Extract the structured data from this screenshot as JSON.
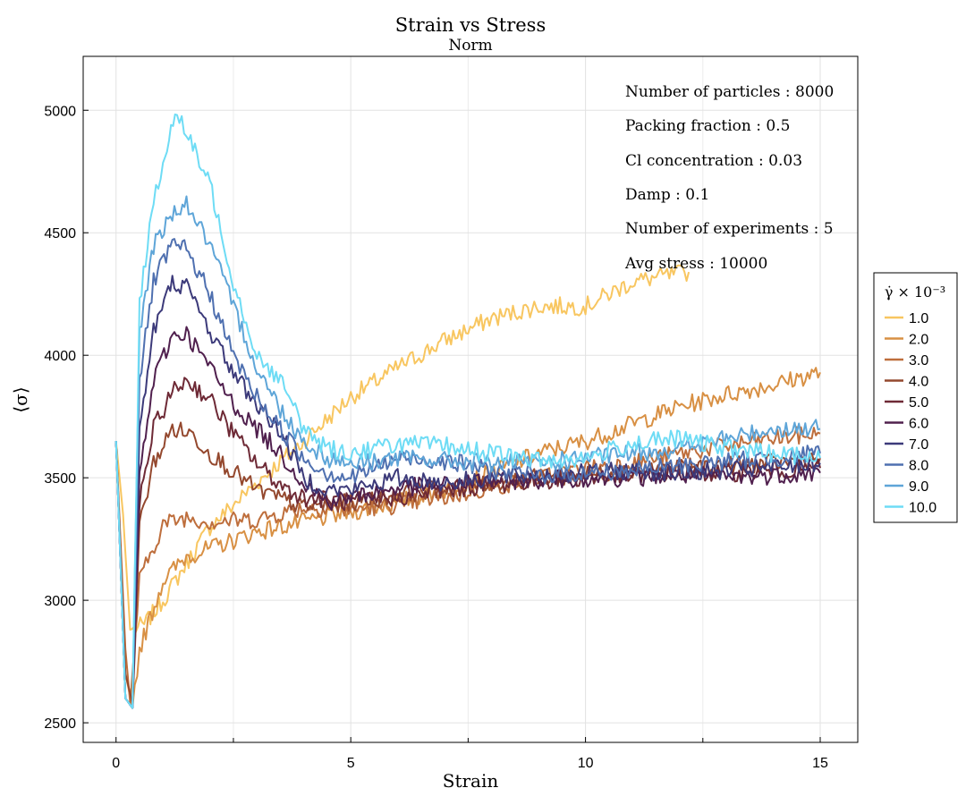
{
  "chart_data": {
    "type": "line",
    "title": "Strain vs Stress",
    "subtitle": "Norm",
    "xlabel": "Strain",
    "ylabel": "⟨σ⟩",
    "xlim": [
      -0.7,
      15.8
    ],
    "ylim": [
      2420,
      5220
    ],
    "xticks": [
      0,
      5,
      10,
      15
    ],
    "yticks": [
      2500,
      3000,
      3500,
      4000,
      4500,
      5000
    ],
    "grid": true,
    "legend": {
      "title": "γ̇ × 10⁻³",
      "position": "right"
    },
    "annotations": [
      "Number of particles : 8000",
      "Packing fraction : 0.5",
      "Cl concentration : 0.03",
      "Damp : 0.1",
      "Number of experiments : 5",
      "Avg stress : 10000"
    ],
    "series": [
      {
        "name": "1.0",
        "color": "#F8C660",
        "x": [
          0,
          0.15,
          0.3,
          0.6,
          1.0,
          1.5,
          2.0,
          3.0,
          4.0,
          5.0,
          6.0,
          7.0,
          8.0,
          9.0,
          10.0,
          11.0,
          12.2
        ],
        "values": [
          3650,
          3350,
          2880,
          2900,
          3000,
          3150,
          3300,
          3480,
          3650,
          3830,
          3950,
          4060,
          4150,
          4200,
          4200,
          4300,
          4340
        ]
      },
      {
        "name": "2.0",
        "color": "#D89044",
        "x": [
          0,
          0.2,
          0.35,
          0.5,
          1.0,
          1.5,
          2.0,
          3.0,
          4.0,
          5.0,
          6.0,
          7.0,
          8.0,
          9.0,
          10.0,
          11.0,
          12.0,
          13.0,
          14.0,
          15.0
        ],
        "values": [
          3650,
          2700,
          2560,
          2800,
          3080,
          3180,
          3210,
          3280,
          3320,
          3360,
          3400,
          3450,
          3520,
          3600,
          3650,
          3720,
          3790,
          3840,
          3880,
          3930
        ]
      },
      {
        "name": "3.0",
        "color": "#BE6E3C",
        "x": [
          0,
          0.2,
          0.3,
          0.5,
          1.0,
          1.5,
          2.0,
          3.0,
          4.0,
          5.0,
          6.0,
          7.0,
          8.0,
          9.0,
          10.0,
          11.0,
          12.0,
          13.0,
          14.0,
          15.0
        ],
        "values": [
          3650,
          2800,
          2580,
          3080,
          3310,
          3340,
          3320,
          3330,
          3380,
          3370,
          3390,
          3420,
          3460,
          3500,
          3540,
          3560,
          3600,
          3630,
          3660,
          3680
        ]
      },
      {
        "name": "4.0",
        "color": "#94482E",
        "x": [
          0,
          0.2,
          0.35,
          0.5,
          0.8,
          1.2,
          1.6,
          2.0,
          3.0,
          4.0,
          5.0,
          6.0,
          7.0,
          8.0,
          9.0,
          10.0,
          11.0,
          12.0,
          13.0,
          14.0,
          15.0
        ],
        "values": [
          3650,
          2700,
          2580,
          3300,
          3560,
          3700,
          3680,
          3600,
          3450,
          3380,
          3400,
          3430,
          3460,
          3480,
          3500,
          3510,
          3530,
          3540,
          3550,
          3560,
          3580
        ]
      },
      {
        "name": "5.0",
        "color": "#6E2A36",
        "x": [
          0,
          0.2,
          0.35,
          0.5,
          0.8,
          1.2,
          1.5,
          2.0,
          2.5,
          3.0,
          3.5,
          4.0,
          5.0,
          6.0,
          7.0,
          8.0,
          9.0,
          10.0,
          11.0,
          12.0,
          13.0,
          14.0,
          15.0
        ],
        "values": [
          3650,
          2600,
          2560,
          3400,
          3700,
          3850,
          3900,
          3820,
          3680,
          3560,
          3470,
          3420,
          3400,
          3420,
          3450,
          3470,
          3490,
          3500,
          3510,
          3520,
          3520,
          3530,
          3540
        ]
      },
      {
        "name": "6.0",
        "color": "#50204E",
        "x": [
          0,
          0.2,
          0.35,
          0.5,
          0.8,
          1.2,
          1.5,
          2.0,
          2.5,
          3.0,
          3.5,
          4.0,
          4.5,
          5.0,
          6.0,
          7.0,
          8.0,
          9.0,
          10.0,
          11.0,
          12.0,
          13.0,
          14.0,
          15.0
        ],
        "values": [
          3650,
          2600,
          2560,
          3500,
          3900,
          4080,
          4090,
          3950,
          3800,
          3700,
          3600,
          3480,
          3400,
          3420,
          3460,
          3470,
          3490,
          3490,
          3500,
          3500,
          3510,
          3500,
          3510,
          3520
        ]
      },
      {
        "name": "7.0",
        "color": "#3C3A7A",
        "x": [
          0,
          0.2,
          0.35,
          0.5,
          0.8,
          1.2,
          1.5,
          2.0,
          2.5,
          3.0,
          3.5,
          4.0,
          4.5,
          5.0,
          6.0,
          7.0,
          8.0,
          9.0,
          10.0,
          11.0,
          12.0,
          13.0,
          14.0,
          15.0
        ],
        "values": [
          3650,
          2600,
          2560,
          3700,
          4100,
          4300,
          4280,
          4100,
          3930,
          3800,
          3690,
          3500,
          3450,
          3450,
          3500,
          3480,
          3500,
          3510,
          3520,
          3530,
          3520,
          3530,
          3540,
          3560
        ]
      },
      {
        "name": "8.0",
        "color": "#4F70B0",
        "x": [
          0,
          0.2,
          0.35,
          0.5,
          0.8,
          1.2,
          1.5,
          2.0,
          2.5,
          3.0,
          3.5,
          4.0,
          4.5,
          5.0,
          6.0,
          7.0,
          8.0,
          9.0,
          10.0,
          11.0,
          12.0,
          13.0,
          14.0,
          15.0
        ],
        "values": [
          3650,
          2600,
          2560,
          3900,
          4300,
          4450,
          4430,
          4250,
          4000,
          3830,
          3700,
          3580,
          3520,
          3500,
          3580,
          3570,
          3530,
          3510,
          3520,
          3530,
          3550,
          3570,
          3580,
          3600
        ]
      },
      {
        "name": "9.0",
        "color": "#5EA5D8",
        "x": [
          0,
          0.2,
          0.35,
          0.5,
          0.8,
          1.2,
          1.5,
          2.0,
          2.5,
          3.0,
          3.5,
          4.0,
          4.5,
          5.0,
          6.0,
          7.0,
          8.0,
          9.0,
          10.0,
          11.0,
          12.0,
          13.0,
          14.0,
          15.0
        ],
        "values": [
          3650,
          2600,
          2560,
          4100,
          4450,
          4580,
          4620,
          4450,
          4200,
          3950,
          3780,
          3650,
          3580,
          3560,
          3580,
          3570,
          3560,
          3560,
          3580,
          3600,
          3620,
          3660,
          3700,
          3700
        ]
      },
      {
        "name": "10.0",
        "color": "#6EDCF5",
        "x": [
          0,
          0.2,
          0.35,
          0.5,
          0.8,
          1.0,
          1.3,
          1.5,
          2.0,
          2.5,
          3.0,
          3.5,
          4.0,
          4.5,
          5.0,
          6.0,
          7.0,
          8.0,
          9.0,
          10.0,
          11.0,
          12.0,
          13.0,
          14.0,
          15.0
        ],
        "values": [
          3650,
          2600,
          2560,
          4200,
          4650,
          4780,
          5000,
          4900,
          4700,
          4300,
          4000,
          3900,
          3700,
          3620,
          3600,
          3640,
          3630,
          3600,
          3570,
          3580,
          3640,
          3660,
          3620,
          3600,
          3580
        ]
      }
    ]
  }
}
